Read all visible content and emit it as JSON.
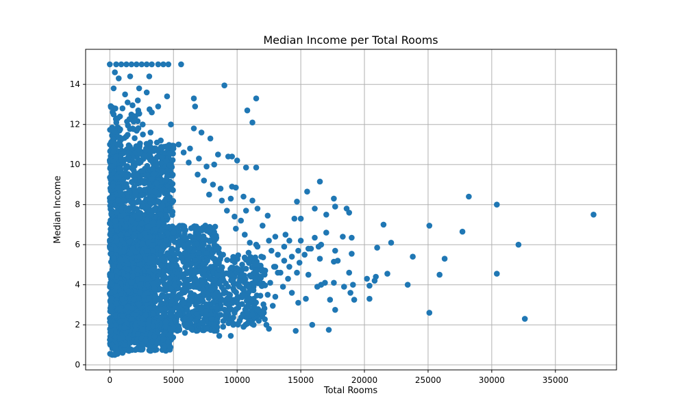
{
  "chart_data": {
    "type": "scatter",
    "title": "Median Income per Total Rooms",
    "xlabel": "Total Rooms",
    "ylabel": "Median Income",
    "xlim": [
      -1900,
      39800
    ],
    "ylim": [
      -0.25,
      15.75
    ],
    "xticks": [
      0,
      5000,
      10000,
      15000,
      20000,
      25000,
      30000,
      35000
    ],
    "yticks": [
      0,
      2,
      4,
      6,
      8,
      10,
      12,
      14
    ],
    "grid": true,
    "color": "#1f77b4",
    "points": [
      [
        0,
        15.0
      ],
      [
        500,
        15.0
      ],
      [
        900,
        15.0
      ],
      [
        1300,
        15.0
      ],
      [
        1700,
        15.0
      ],
      [
        2100,
        15.0
      ],
      [
        2500,
        15.0
      ],
      [
        2900,
        15.0
      ],
      [
        3300,
        15.0
      ],
      [
        3800,
        15.0
      ],
      [
        4200,
        15.0
      ],
      [
        4600,
        15.0
      ],
      [
        5600,
        15.0
      ],
      [
        400,
        14.6
      ],
      [
        700,
        14.3
      ],
      [
        1600,
        14.4
      ],
      [
        3100,
        14.4
      ],
      [
        300,
        13.8
      ],
      [
        1200,
        13.5
      ],
      [
        2300,
        13.8
      ],
      [
        2900,
        13.6
      ],
      [
        4500,
        13.4
      ],
      [
        6600,
        13.3
      ],
      [
        9000,
        13.95
      ],
      [
        11500,
        13.3
      ],
      [
        1400,
        13.1
      ],
      [
        2200,
        13.2
      ],
      [
        3800,
        12.9
      ],
      [
        6700,
        12.9
      ],
      [
        10800,
        12.7
      ],
      [
        300,
        12.5
      ],
      [
        800,
        12.4
      ],
      [
        2000,
        12.4
      ],
      [
        3300,
        12.6
      ],
      [
        11200,
        12.1
      ],
      [
        4800,
        12.0
      ],
      [
        6600,
        11.8
      ],
      [
        7200,
        11.6
      ],
      [
        7900,
        11.3
      ],
      [
        4000,
        11.2
      ],
      [
        5400,
        11.0
      ],
      [
        6300,
        10.8
      ],
      [
        8500,
        10.5
      ],
      [
        9600,
        10.4
      ],
      [
        10000,
        10.2
      ],
      [
        9300,
        10.4
      ],
      [
        10700,
        9.85
      ],
      [
        11500,
        9.85
      ],
      [
        9600,
        8.9
      ],
      [
        9900,
        8.85
      ],
      [
        8700,
        8.8
      ],
      [
        9500,
        8.3
      ],
      [
        10500,
        8.4
      ],
      [
        11200,
        8.2
      ],
      [
        10700,
        7.7
      ],
      [
        11600,
        7.8
      ],
      [
        12400,
        7.45
      ],
      [
        12000,
        6.95
      ],
      [
        13000,
        6.4
      ],
      [
        14100,
        6.2
      ],
      [
        13800,
        6.5
      ],
      [
        14500,
        7.3
      ],
      [
        15000,
        7.3
      ],
      [
        14700,
        8.15
      ],
      [
        15500,
        8.65
      ],
      [
        16500,
        9.15
      ],
      [
        16100,
        7.8
      ],
      [
        17000,
        7.5
      ],
      [
        17600,
        8.3
      ],
      [
        17700,
        7.9
      ],
      [
        18600,
        7.8
      ],
      [
        18800,
        7.6
      ],
      [
        17000,
        6.6
      ],
      [
        16600,
        6.0
      ],
      [
        16100,
        6.35
      ],
      [
        15600,
        5.8
      ],
      [
        17700,
        5.7
      ],
      [
        18300,
        6.4
      ],
      [
        19000,
        6.35
      ],
      [
        19000,
        5.55
      ],
      [
        17900,
        5.2
      ],
      [
        17600,
        5.15
      ],
      [
        16500,
        5.3
      ],
      [
        15800,
        5.8
      ],
      [
        14800,
        5.7
      ],
      [
        14900,
        5.1
      ],
      [
        13700,
        5.2
      ],
      [
        13200,
        4.6
      ],
      [
        14000,
        4.3
      ],
      [
        14700,
        4.6
      ],
      [
        15600,
        4.5
      ],
      [
        16600,
        4.0
      ],
      [
        16900,
        4.1
      ],
      [
        17600,
        4.1
      ],
      [
        18400,
        3.9
      ],
      [
        18800,
        4.6
      ],
      [
        19100,
        4.0
      ],
      [
        18900,
        3.6
      ],
      [
        19200,
        3.25
      ],
      [
        17300,
        3.25
      ],
      [
        17700,
        2.75
      ],
      [
        16300,
        3.9
      ],
      [
        15400,
        3.3
      ],
      [
        14800,
        3.1
      ],
      [
        14300,
        3.6
      ],
      [
        13600,
        3.9
      ],
      [
        13000,
        3.4
      ],
      [
        12400,
        3.5
      ],
      [
        12800,
        2.95
      ],
      [
        12100,
        2.6
      ],
      [
        11300,
        3.3
      ],
      [
        11700,
        2.2
      ],
      [
        12300,
        2.0
      ],
      [
        12500,
        1.8
      ],
      [
        11300,
        2.0
      ],
      [
        10500,
        1.9
      ],
      [
        10200,
        2.2
      ],
      [
        10800,
        2.6
      ],
      [
        10200,
        3.9
      ],
      [
        9600,
        4.2
      ],
      [
        9400,
        3.0
      ],
      [
        9700,
        2.0
      ],
      [
        9500,
        1.45
      ],
      [
        8600,
        1.45
      ],
      [
        8000,
        2.3
      ],
      [
        8400,
        2.9
      ],
      [
        14600,
        1.7
      ],
      [
        15900,
        2.0
      ],
      [
        17200,
        1.75
      ],
      [
        13000,
        4.9
      ],
      [
        12700,
        5.7
      ],
      [
        11600,
        5.9
      ],
      [
        12500,
        6.2
      ],
      [
        15000,
        6.2
      ],
      [
        15300,
        5.5
      ],
      [
        16400,
        5.9
      ],
      [
        20200,
        4.3
      ],
      [
        20400,
        3.95
      ],
      [
        20400,
        3.3
      ],
      [
        20900,
        4.4
      ],
      [
        20800,
        4.2
      ],
      [
        21000,
        5.85
      ],
      [
        21500,
        7.0
      ],
      [
        21800,
        4.55
      ],
      [
        22100,
        6.1
      ],
      [
        23400,
        4.0
      ],
      [
        23800,
        5.4
      ],
      [
        25100,
        6.95
      ],
      [
        25900,
        4.5
      ],
      [
        26300,
        5.3
      ],
      [
        25100,
        2.6
      ],
      [
        27700,
        6.65
      ],
      [
        28200,
        8.4
      ],
      [
        30400,
        8.0
      ],
      [
        30400,
        4.55
      ],
      [
        32100,
        6.0
      ],
      [
        32600,
        2.3
      ],
      [
        38000,
        7.5
      ],
      [
        700,
        11.0
      ],
      [
        1300,
        11.4
      ],
      [
        1800,
        11.8
      ],
      [
        2600,
        11.5
      ],
      [
        3200,
        11.6
      ],
      [
        3700,
        11.1
      ],
      [
        4400,
        10.9
      ],
      [
        5000,
        10.8
      ],
      [
        5800,
        10.6
      ],
      [
        6200,
        10.1
      ],
      [
        7000,
        10.3
      ],
      [
        7600,
        9.9
      ],
      [
        8200,
        10.0
      ],
      [
        6900,
        9.5
      ],
      [
        7400,
        9.2
      ],
      [
        8100,
        9.0
      ],
      [
        7800,
        8.5
      ],
      [
        8800,
        8.2
      ],
      [
        9200,
        7.7
      ],
      [
        9800,
        7.4
      ],
      [
        10300,
        7.2
      ],
      [
        9900,
        6.8
      ],
      [
        10600,
        6.5
      ],
      [
        11000,
        6.1
      ],
      [
        11500,
        6.0
      ],
      [
        10900,
        5.6
      ],
      [
        11900,
        5.4
      ],
      [
        11400,
        5.0
      ],
      [
        12200,
        4.7
      ],
      [
        11800,
        4.3
      ],
      [
        12600,
        4.1
      ],
      [
        11100,
        4.4
      ],
      [
        10700,
        4.8
      ],
      [
        12900,
        4.9
      ],
      [
        13400,
        4.6
      ],
      [
        13200,
        5.5
      ],
      [
        13700,
        5.9
      ],
      [
        14300,
        5.4
      ],
      [
        14100,
        4.9
      ],
      [
        10400,
        3.5
      ],
      [
        10000,
        3.1
      ],
      [
        10900,
        2.9
      ],
      [
        11200,
        2.5
      ],
      [
        9800,
        2.6
      ],
      [
        9100,
        2.4
      ],
      [
        8900,
        1.9
      ],
      [
        8200,
        1.7
      ],
      [
        7600,
        1.8
      ],
      [
        7300,
        2.1
      ],
      [
        6800,
        1.7
      ],
      [
        6400,
        1.8
      ],
      [
        5900,
        1.6
      ],
      [
        5300,
        1.7
      ],
      [
        4700,
        1.5
      ],
      [
        4200,
        1.3
      ],
      [
        3700,
        1.1
      ],
      [
        3100,
        0.95
      ],
      [
        2500,
        0.8
      ],
      [
        2000,
        0.75
      ],
      [
        1500,
        0.7
      ],
      [
        1000,
        0.6
      ],
      [
        600,
        0.55
      ],
      [
        200,
        0.5
      ],
      [
        1200,
        1.0
      ],
      [
        2800,
        1.2
      ],
      [
        3500,
        1.4
      ]
    ],
    "clusters": [
      {
        "x": [
          0,
          5000
        ],
        "y": [
          1.0,
          11.0
        ],
        "n": 1400
      },
      {
        "x": [
          200,
          3600
        ],
        "y": [
          2.0,
          7.5
        ],
        "n": 900
      },
      {
        "x": [
          4800,
          8600
        ],
        "y": [
          1.7,
          7.0
        ],
        "n": 520
      },
      {
        "x": [
          8400,
          12200
        ],
        "y": [
          2.0,
          5.5
        ],
        "n": 230
      },
      {
        "x": [
          0,
          900
        ],
        "y": [
          0.5,
          12.0
        ],
        "n": 300
      },
      {
        "x": [
          800,
          4800
        ],
        "y": [
          0.7,
          2.5
        ],
        "n": 260
      },
      {
        "x": [
          0,
          3200
        ],
        "y": [
          10.5,
          13.0
        ],
        "n": 45
      }
    ]
  }
}
